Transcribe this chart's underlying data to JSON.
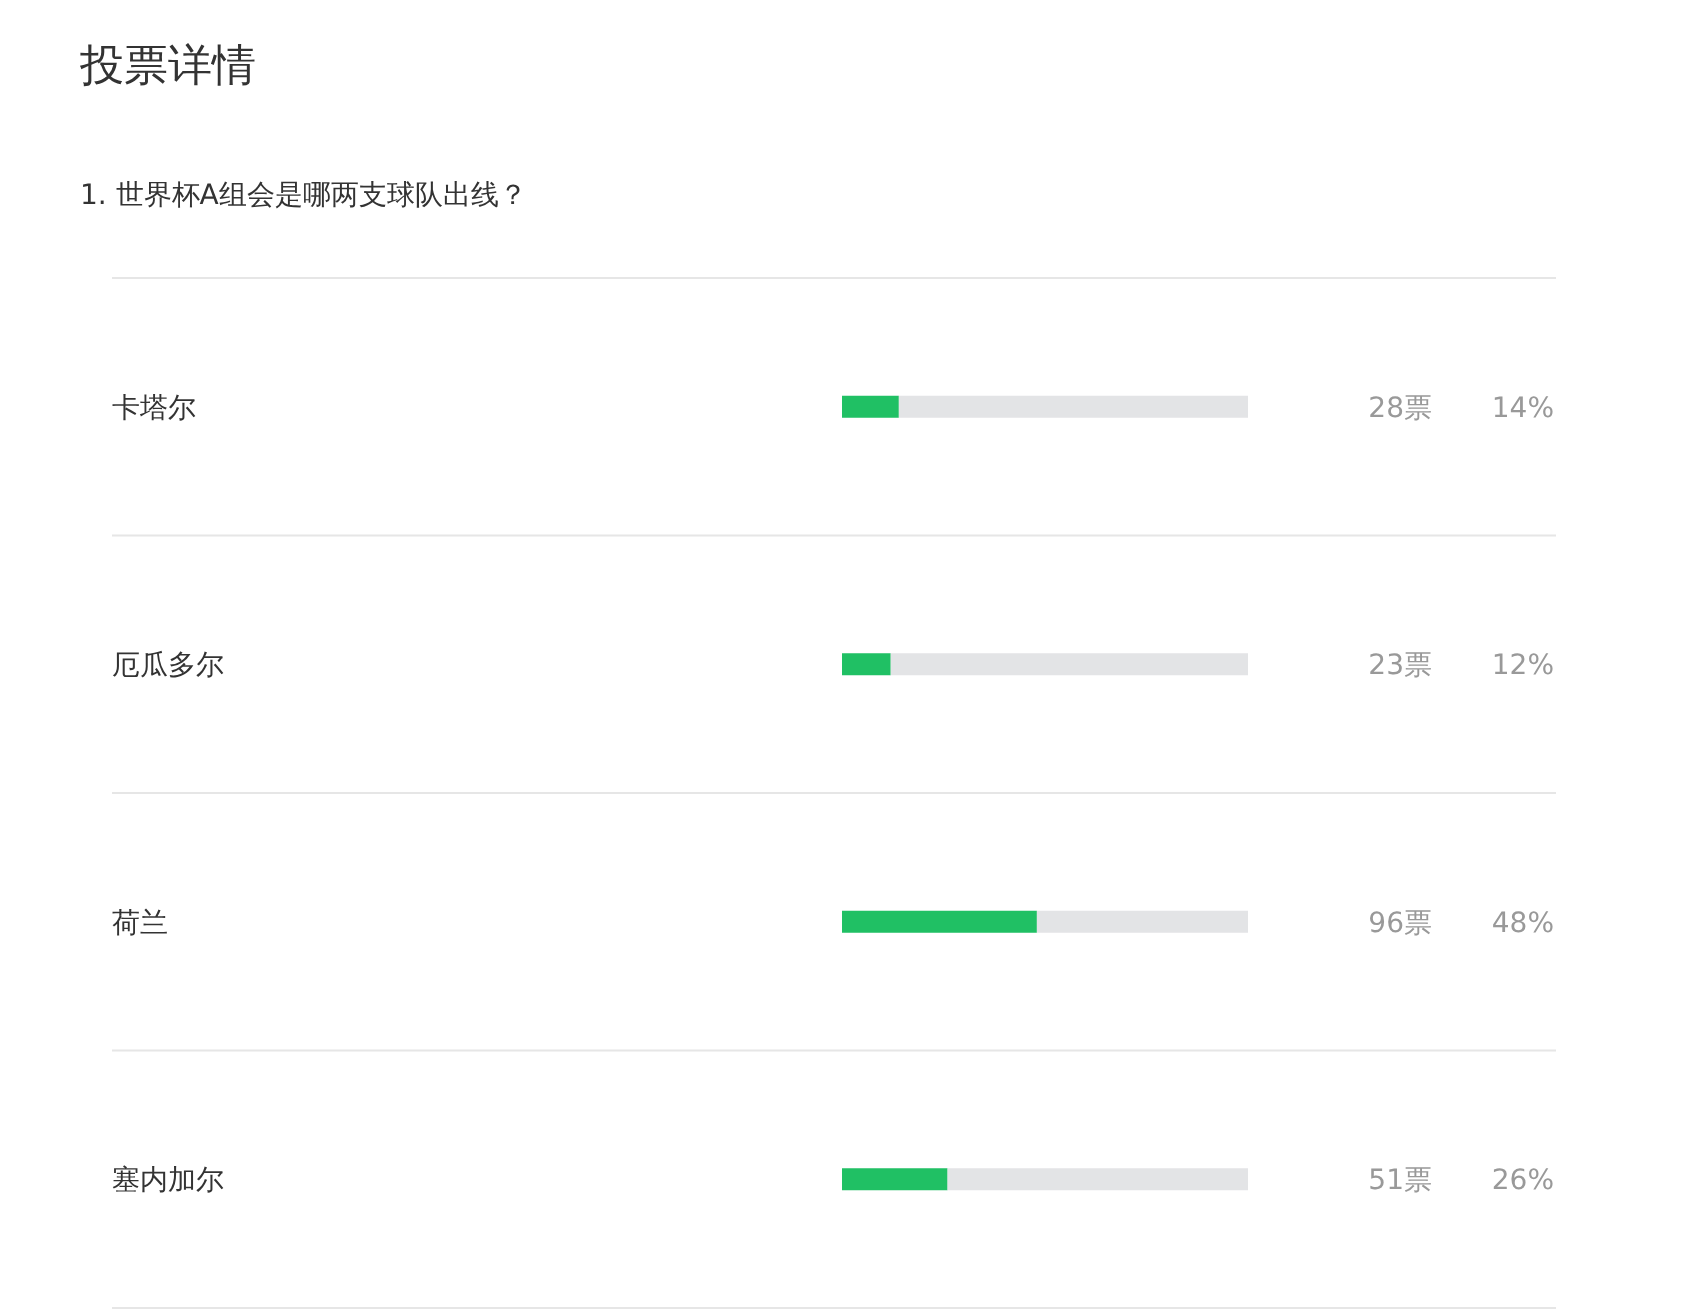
{
  "chart_data": {
    "type": "bar",
    "orientation": "horizontal",
    "stacked": true,
    "title": "投票详情",
    "subtitle": "1. 世界杯A组会是哪两支球队出线？",
    "categories": [
      "卡塔尔",
      "厄瓜多尔",
      "荷兰",
      "塞内加尔"
    ],
    "series": [
      {
        "color": "#20c064",
        "values": [
          14,
          12,
          48,
          26
        ],
        "value_labels": [
          "14%",
          "12%",
          "48%",
          "26%"
        ]
      },
      {
        "color": "#e3e4e6",
        "values": [
          86,
          88,
          52,
          74
        ]
      }
    ],
    "xlim": [
      0,
      100
    ],
    "tick_labels": "y",
    "annotations": [
      "28票",
      "23票",
      "96票",
      "51票"
    ]
  }
}
